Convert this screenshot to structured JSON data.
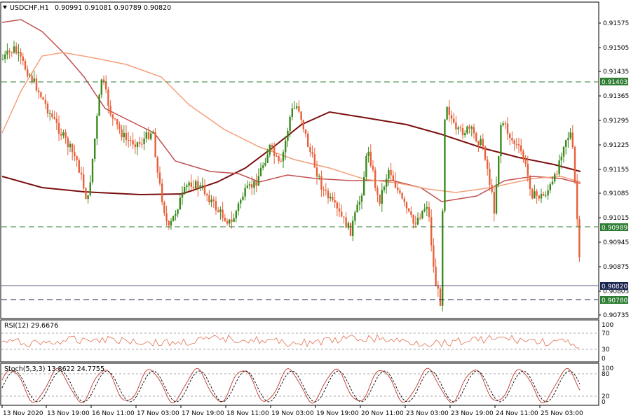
{
  "header": {
    "symbol": "USDCHF,H1",
    "ohlc": "0.90991 0.91081 0.90789 0.90820"
  },
  "price_axis": {
    "ticks": [
      "0.91575",
      "0.91505",
      "0.91435",
      "0.91365",
      "0.91295",
      "0.91225",
      "0.91155",
      "0.91085",
      "0.91015",
      "0.90945",
      "0.90875",
      "0.90805",
      "0.90735"
    ]
  },
  "level_tags": {
    "resistance": "0.91403",
    "support_mid": "0.90989",
    "current_price": "0.90820",
    "support_low": "0.90780"
  },
  "rsi": {
    "label": "RSI(12) 29.6676",
    "ticks": [
      "100",
      "70",
      "30",
      "0"
    ]
  },
  "stoch": {
    "label": "Stoch(5,3,3) 13.8622 24.7755",
    "ticks": [
      "100",
      "80",
      "20",
      "0"
    ]
  },
  "time_axis": {
    "labels": [
      "13 Nov 2020",
      "13 Nov 19:00",
      "16 Nov 11:00",
      "17 Nov 03:00",
      "17 Nov 19:00",
      "18 Nov 11:00",
      "19 Nov 03:00",
      "19 Nov 19:00",
      "20 Nov 11:00",
      "23 Nov 03:00",
      "23 Nov 19:00",
      "24 Nov 11:00",
      "25 Nov 03:00"
    ]
  },
  "colors": {
    "bull": "#3a8a1c",
    "bear": "#e8603a",
    "ma_slow": "#7b0f0f",
    "ma_mid": "#c05050",
    "ma_fast": "#f4a07a",
    "rsi_line": "#e07050",
    "stoch_main": "#c0392b",
    "stoch_signal": "#000000",
    "tag_green": "#2e7d32",
    "tag_navy": "#1a2550"
  },
  "icons": {
    "collapse": "triangle-down-icon"
  }
}
